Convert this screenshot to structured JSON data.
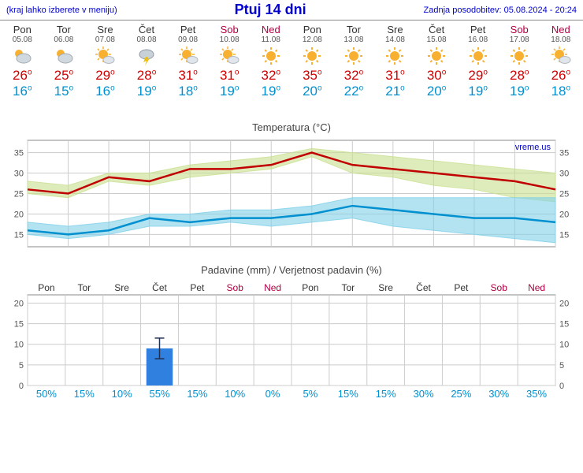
{
  "header": {
    "meniju": "(kraj lahko izberete v meniju)",
    "title": "Ptuj 14 dni",
    "updated": "Zadnja posodobitev: 05.08.2024 - 20:24"
  },
  "days": [
    {
      "name": "Pon",
      "date": "05.08",
      "weekend": false,
      "icon": "partly",
      "high": 26,
      "low": 16
    },
    {
      "name": "Tor",
      "date": "06.08",
      "weekend": false,
      "icon": "partly",
      "high": 25,
      "low": 15
    },
    {
      "name": "Sre",
      "date": "07.08",
      "weekend": false,
      "icon": "mostlysun",
      "high": 29,
      "low": 16
    },
    {
      "name": "Čet",
      "date": "08.08",
      "weekend": false,
      "icon": "storm",
      "high": 28,
      "low": 19
    },
    {
      "name": "Pet",
      "date": "09.08",
      "weekend": false,
      "icon": "mostlysun",
      "high": 31,
      "low": 18
    },
    {
      "name": "Sob",
      "date": "10.08",
      "weekend": true,
      "icon": "mostlysun",
      "high": 31,
      "low": 19
    },
    {
      "name": "Ned",
      "date": "11.08",
      "weekend": true,
      "icon": "sun",
      "high": 32,
      "low": 19
    },
    {
      "name": "Pon",
      "date": "12.08",
      "weekend": false,
      "icon": "sun",
      "high": 35,
      "low": 20
    },
    {
      "name": "Tor",
      "date": "13.08",
      "weekend": false,
      "icon": "sun",
      "high": 32,
      "low": 22
    },
    {
      "name": "Sre",
      "date": "14.08",
      "weekend": false,
      "icon": "sun",
      "high": 31,
      "low": 21
    },
    {
      "name": "Čet",
      "date": "15.08",
      "weekend": false,
      "icon": "sun",
      "high": 30,
      "low": 20
    },
    {
      "name": "Pet",
      "date": "16.08",
      "weekend": false,
      "icon": "sun",
      "high": 29,
      "low": 19
    },
    {
      "name": "Sob",
      "date": "17.08",
      "weekend": true,
      "icon": "sun",
      "high": 28,
      "low": 19
    },
    {
      "name": "Ned",
      "date": "18.08",
      "weekend": true,
      "icon": "mostlysun",
      "high": 26,
      "low": 18
    }
  ],
  "temp_chart": {
    "title": "Temperatura (°C)",
    "watermark": "vreme.us",
    "ylim": [
      12,
      38
    ],
    "ytick_step": 5,
    "grid_color": "#cccccc",
    "background_color": "#ffffff",
    "high_line_color": "#c00000",
    "low_line_color": "#0090d0",
    "high_band_color": "#c8e090",
    "low_band_color": "#80d0e8",
    "high": [
      26,
      25,
      29,
      28,
      31,
      31,
      32,
      35,
      32,
      31,
      30,
      29,
      28,
      26
    ],
    "high_upper": [
      28,
      27,
      30,
      30,
      32,
      33,
      34,
      36,
      35,
      34,
      33,
      32,
      31,
      30
    ],
    "high_lower": [
      25,
      24,
      28,
      27,
      29,
      30,
      31,
      34,
      30,
      29,
      27,
      26,
      24,
      23
    ],
    "low": [
      16,
      15,
      16,
      19,
      18,
      19,
      19,
      20,
      22,
      21,
      20,
      19,
      19,
      18
    ],
    "low_upper": [
      18,
      17,
      18,
      20,
      20,
      21,
      21,
      22,
      24,
      24,
      24,
      24,
      24,
      24
    ],
    "low_lower": [
      15,
      14,
      15,
      17,
      17,
      18,
      17,
      18,
      19,
      17,
      16,
      15,
      14,
      13
    ]
  },
  "precip_chart": {
    "title": "Padavine (mm) / Verjetnost padavin (%)",
    "ylim": [
      0,
      22
    ],
    "ytick_step": 5,
    "grid_color": "#cccccc",
    "bar_color": "#3080e0",
    "prob_color": "#0090d0",
    "day_color_weekday": "#333333",
    "day_color_weekend": "#b00040",
    "mm": [
      0,
      0,
      0,
      9,
      0,
      0,
      0,
      0,
      0,
      0,
      0,
      0,
      0,
      0
    ],
    "mm_err": [
      0,
      0,
      0,
      2.5,
      0,
      0,
      0,
      0,
      0,
      0,
      0,
      0,
      0,
      0
    ],
    "prob": [
      50,
      15,
      10,
      55,
      15,
      10,
      0,
      5,
      15,
      15,
      30,
      25,
      30,
      35
    ]
  }
}
